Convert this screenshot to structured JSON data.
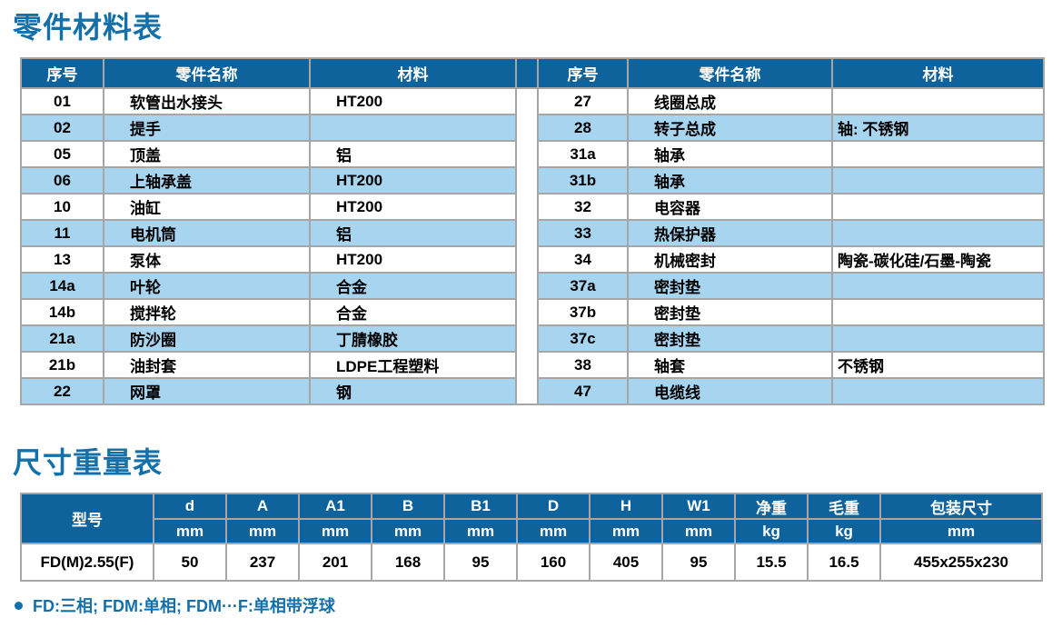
{
  "colors": {
    "header_bg": "#0e639c",
    "alt_row_bg": "#a7d4ef",
    "border": "#a6a6a6",
    "accent_blue": "#1470a8"
  },
  "parts_section": {
    "title": "零件材料表",
    "headers": {
      "no": "序号",
      "name": "零件名称",
      "material": "材料"
    },
    "left_rows": [
      {
        "no": "01",
        "name": "软管出水接头",
        "material": "HT200"
      },
      {
        "no": "02",
        "name": "提手",
        "material": ""
      },
      {
        "no": "05",
        "name": "顶盖",
        "material": "铝"
      },
      {
        "no": "06",
        "name": "上轴承盖",
        "material": "HT200"
      },
      {
        "no": "10",
        "name": "油缸",
        "material": "HT200"
      },
      {
        "no": "11",
        "name": "电机筒",
        "material": "铝"
      },
      {
        "no": "13",
        "name": "泵体",
        "material": "HT200"
      },
      {
        "no": "14a",
        "name": "叶轮",
        "material": "合金"
      },
      {
        "no": "14b",
        "name": "搅拌轮",
        "material": "合金"
      },
      {
        "no": "21a",
        "name": "防沙圈",
        "material": "丁腈橡胶"
      },
      {
        "no": "21b",
        "name": "油封套",
        "material": "LDPE工程塑料"
      },
      {
        "no": "22",
        "name": "网罩",
        "material": "钢"
      }
    ],
    "right_rows": [
      {
        "no": "27",
        "name": "线圈总成",
        "material": ""
      },
      {
        "no": "28",
        "name": "转子总成",
        "material": "轴: 不锈钢"
      },
      {
        "no": "31a",
        "name": "轴承",
        "material": ""
      },
      {
        "no": "31b",
        "name": "轴承",
        "material": ""
      },
      {
        "no": "32",
        "name": "电容器",
        "material": ""
      },
      {
        "no": "33",
        "name": "热保护器",
        "material": ""
      },
      {
        "no": "34",
        "name": "机械密封",
        "material": "陶瓷-碳化硅/石墨-陶瓷"
      },
      {
        "no": "37a",
        "name": "密封垫",
        "material": ""
      },
      {
        "no": "37b",
        "name": "密封垫",
        "material": ""
      },
      {
        "no": "37c",
        "name": "密封垫",
        "material": ""
      },
      {
        "no": "38",
        "name": "轴套",
        "material": "不锈钢"
      },
      {
        "no": "47",
        "name": "电缆线",
        "material": ""
      }
    ]
  },
  "dimensions_section": {
    "title": "尺寸重量表",
    "model_header": "型号",
    "columns": [
      {
        "label": "d",
        "unit": "mm"
      },
      {
        "label": "A",
        "unit": "mm"
      },
      {
        "label": "A1",
        "unit": "mm"
      },
      {
        "label": "B",
        "unit": "mm"
      },
      {
        "label": "B1",
        "unit": "mm"
      },
      {
        "label": "D",
        "unit": "mm"
      },
      {
        "label": "H",
        "unit": "mm"
      },
      {
        "label": "W1",
        "unit": "mm"
      },
      {
        "label": "净重",
        "unit": "kg"
      },
      {
        "label": "毛重",
        "unit": "kg"
      },
      {
        "label": "包装尺寸",
        "unit": "mm"
      }
    ],
    "row": {
      "model": "FD(M)2.55(F)",
      "values": [
        "50",
        "237",
        "201",
        "168",
        "95",
        "160",
        "405",
        "95",
        "15.5",
        "16.5",
        "455x255x230"
      ]
    }
  },
  "footnote": {
    "text": "FD:三相; FDM:单相; FDM···F:单相带浮球"
  }
}
